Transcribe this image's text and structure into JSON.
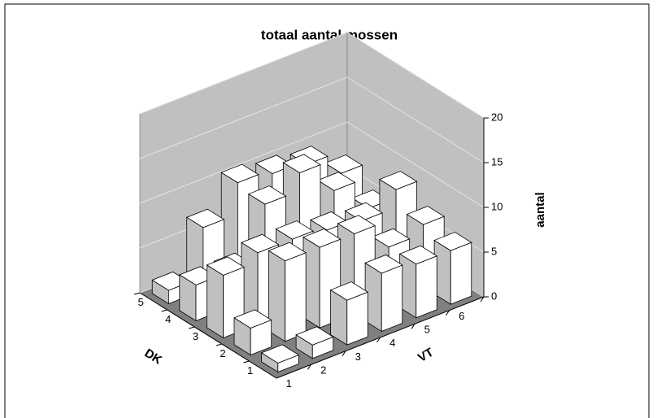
{
  "chart_data": {
    "type": "bar3d",
    "title": "totaal aantal mossen",
    "xlabel": "VT",
    "ylabel": "DK",
    "zlabel": "aantal",
    "categories": [
      "1",
      "2",
      "3",
      "4",
      "5",
      "6"
    ],
    "rows": [
      "1",
      "2",
      "3",
      "4",
      "5"
    ],
    "values": [
      [
        1,
        1.5,
        5,
        6.5,
        6,
        6
      ],
      [
        3,
        9,
        9,
        9,
        6,
        7
      ],
      [
        7,
        8,
        8,
        7.5,
        7,
        9
      ],
      [
        4,
        4,
        10,
        12,
        8.5,
        5
      ],
      [
        1.5,
        7,
        10.5,
        10,
        9.5,
        7
      ]
    ],
    "zlim": [
      0,
      20
    ],
    "zticks": [
      0,
      5,
      10,
      15,
      20
    ],
    "grid": true
  }
}
